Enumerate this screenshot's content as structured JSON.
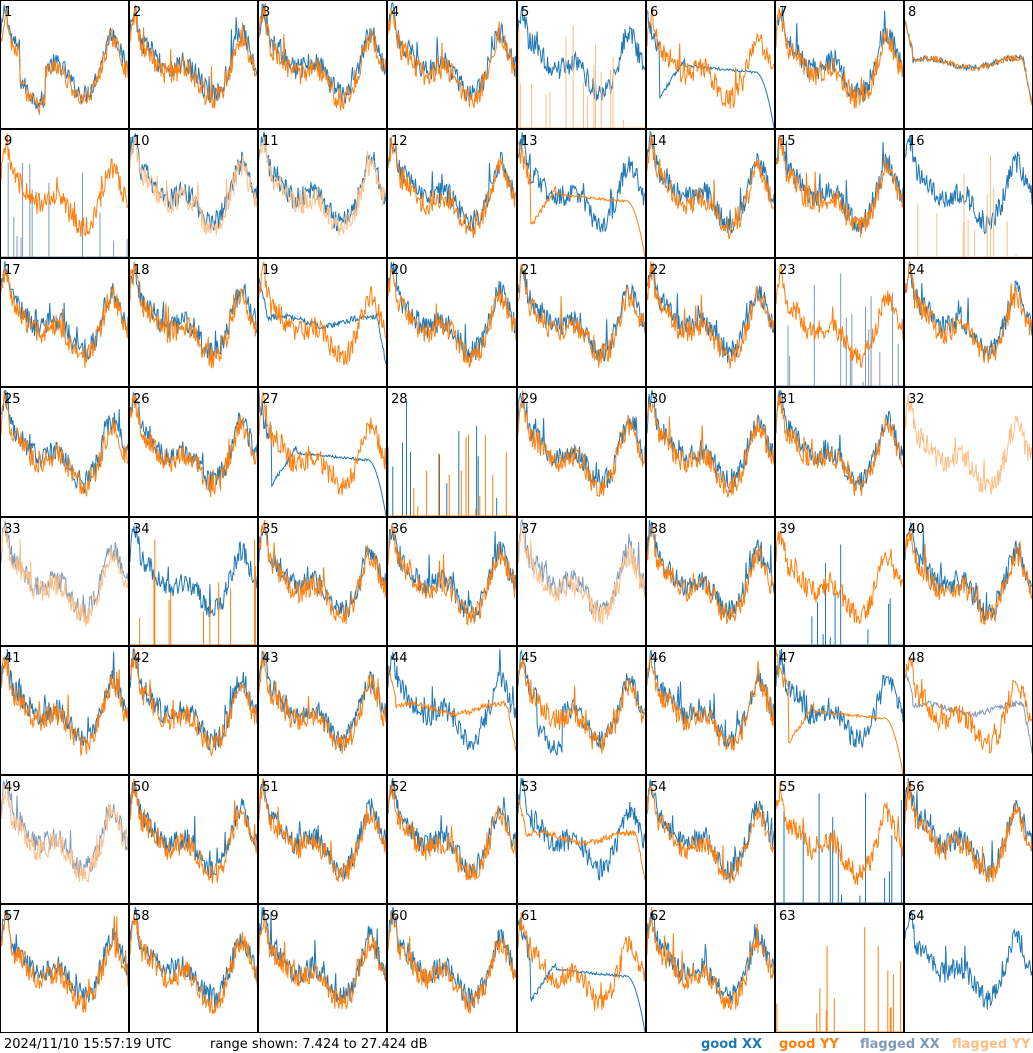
{
  "footer": {
    "timestamp": "2024/11/10 15:57:19 UTC",
    "range": "range shown: 7.424 to 27.424 dB"
  },
  "legend": [
    {
      "label": "good XX",
      "color": "#1f77b4"
    },
    {
      "label": "good YY",
      "color": "#ff7f0e"
    },
    {
      "label": "flagged XX",
      "color": "#7f9bb8"
    },
    {
      "label": "flagged YY",
      "color": "#ffbf87"
    }
  ],
  "colors": {
    "good_xx": "#1f77b4",
    "good_yy": "#ff7f0e",
    "flagged_xx": "#7f9bb8",
    "flagged_yy": "#ffbf87",
    "border": "#000000"
  },
  "chart_data": {
    "type": "line",
    "layout": "8x8 small multiples",
    "ylim_db": [
      7.424,
      27.424
    ],
    "series_kinds": [
      "XX",
      "YY"
    ],
    "panels": [
      {
        "id": "1",
        "xx": "good",
        "yy": "good",
        "xx_shape": "dip",
        "yy_shape": "dip"
      },
      {
        "id": "2",
        "xx": "good",
        "yy": "good",
        "xx_shape": "normal",
        "yy_shape": "normal"
      },
      {
        "id": "3",
        "xx": "good",
        "yy": "good",
        "xx_shape": "normal",
        "yy_shape": "normal"
      },
      {
        "id": "4",
        "xx": "good",
        "yy": "good",
        "xx_shape": "normal",
        "yy_shape": "normal"
      },
      {
        "id": "5",
        "xx": "good",
        "yy": "flagged",
        "xx_shape": "normal",
        "yy_shape": "spiky"
      },
      {
        "id": "6",
        "xx": "good",
        "yy": "good",
        "xx_shape": "decay",
        "yy_shape": "normal"
      },
      {
        "id": "7",
        "xx": "good",
        "yy": "good",
        "xx_shape": "normal",
        "yy_shape": "normal"
      },
      {
        "id": "8",
        "xx": "good",
        "yy": "good",
        "xx_shape": "flat",
        "yy_shape": "flat"
      },
      {
        "id": "9",
        "xx": "flagged",
        "yy": "good",
        "xx_shape": "spiky",
        "yy_shape": "normal"
      },
      {
        "id": "10",
        "xx": "good",
        "yy": "flagged",
        "xx_shape": "normal",
        "yy_shape": "normal"
      },
      {
        "id": "11",
        "xx": "good",
        "yy": "flagged",
        "xx_shape": "normal",
        "yy_shape": "normal"
      },
      {
        "id": "12",
        "xx": "good",
        "yy": "good",
        "xx_shape": "normal",
        "yy_shape": "normal"
      },
      {
        "id": "13",
        "xx": "good",
        "yy": "good",
        "xx_shape": "normal",
        "yy_shape": "decay"
      },
      {
        "id": "14",
        "xx": "good",
        "yy": "good",
        "xx_shape": "normal",
        "yy_shape": "normal"
      },
      {
        "id": "15",
        "xx": "good",
        "yy": "good",
        "xx_shape": "normal",
        "yy_shape": "normal"
      },
      {
        "id": "16",
        "xx": "good",
        "yy": "flagged",
        "xx_shape": "normal",
        "yy_shape": "spiky"
      },
      {
        "id": "17",
        "xx": "good",
        "yy": "good",
        "xx_shape": "normal",
        "yy_shape": "normal"
      },
      {
        "id": "18",
        "xx": "good",
        "yy": "good",
        "xx_shape": "normal",
        "yy_shape": "normal"
      },
      {
        "id": "19",
        "xx": "good",
        "yy": "good",
        "xx_shape": "flat",
        "yy_shape": "normal"
      },
      {
        "id": "20",
        "xx": "good",
        "yy": "good",
        "xx_shape": "normal",
        "yy_shape": "normal"
      },
      {
        "id": "21",
        "xx": "good",
        "yy": "good",
        "xx_shape": "normal",
        "yy_shape": "normal"
      },
      {
        "id": "22",
        "xx": "good",
        "yy": "good",
        "xx_shape": "normal",
        "yy_shape": "normal"
      },
      {
        "id": "23",
        "xx": "flagged",
        "yy": "good",
        "xx_shape": "spiky",
        "yy_shape": "normal"
      },
      {
        "id": "24",
        "xx": "good",
        "yy": "good",
        "xx_shape": "normal",
        "yy_shape": "normal"
      },
      {
        "id": "25",
        "xx": "good",
        "yy": "good",
        "xx_shape": "normal",
        "yy_shape": "normal"
      },
      {
        "id": "26",
        "xx": "good",
        "yy": "good",
        "xx_shape": "normal",
        "yy_shape": "normal"
      },
      {
        "id": "27",
        "xx": "good",
        "yy": "good",
        "xx_shape": "decay",
        "yy_shape": "normal"
      },
      {
        "id": "28",
        "xx": "good",
        "yy": "good",
        "xx_shape": "spiky",
        "yy_shape": "spiky"
      },
      {
        "id": "29",
        "xx": "good",
        "yy": "good",
        "xx_shape": "normal",
        "yy_shape": "normal"
      },
      {
        "id": "30",
        "xx": "good",
        "yy": "good",
        "xx_shape": "normal",
        "yy_shape": "normal"
      },
      {
        "id": "31",
        "xx": "good",
        "yy": "good",
        "xx_shape": "normal",
        "yy_shape": "normal"
      },
      {
        "id": "32",
        "xx": "flagged",
        "yy": "flagged",
        "xx_shape": "none",
        "yy_shape": "normal"
      },
      {
        "id": "33",
        "xx": "flagged",
        "yy": "flagged",
        "xx_shape": "normal",
        "yy_shape": "normal"
      },
      {
        "id": "34",
        "xx": "good",
        "yy": "good",
        "xx_shape": "normal",
        "yy_shape": "spiky"
      },
      {
        "id": "35",
        "xx": "good",
        "yy": "good",
        "xx_shape": "normal",
        "yy_shape": "normal"
      },
      {
        "id": "36",
        "xx": "good",
        "yy": "good",
        "xx_shape": "normal",
        "yy_shape": "normal"
      },
      {
        "id": "37",
        "xx": "flagged",
        "yy": "flagged",
        "xx_shape": "normal",
        "yy_shape": "normal"
      },
      {
        "id": "38",
        "xx": "good",
        "yy": "good",
        "xx_shape": "normal",
        "yy_shape": "normal"
      },
      {
        "id": "39",
        "xx": "good",
        "yy": "good",
        "xx_shape": "spiky",
        "yy_shape": "normal"
      },
      {
        "id": "40",
        "xx": "good",
        "yy": "good",
        "xx_shape": "normal",
        "yy_shape": "normal"
      },
      {
        "id": "41",
        "xx": "good",
        "yy": "good",
        "xx_shape": "normal",
        "yy_shape": "normal"
      },
      {
        "id": "42",
        "xx": "good",
        "yy": "good",
        "xx_shape": "normal",
        "yy_shape": "normal"
      },
      {
        "id": "43",
        "xx": "good",
        "yy": "good",
        "xx_shape": "normal",
        "yy_shape": "normal"
      },
      {
        "id": "44",
        "xx": "good",
        "yy": "good",
        "xx_shape": "normal",
        "yy_shape": "flat"
      },
      {
        "id": "45",
        "xx": "good",
        "yy": "good",
        "xx_shape": "dip",
        "yy_shape": "normal"
      },
      {
        "id": "46",
        "xx": "good",
        "yy": "good",
        "xx_shape": "normal",
        "yy_shape": "normal"
      },
      {
        "id": "47",
        "xx": "good",
        "yy": "good",
        "xx_shape": "normal",
        "yy_shape": "decay"
      },
      {
        "id": "48",
        "xx": "flagged",
        "yy": "good",
        "xx_shape": "flat",
        "yy_shape": "normal"
      },
      {
        "id": "49",
        "xx": "flagged",
        "yy": "flagged",
        "xx_shape": "normal",
        "yy_shape": "normal"
      },
      {
        "id": "50",
        "xx": "good",
        "yy": "good",
        "xx_shape": "normal",
        "yy_shape": "normal"
      },
      {
        "id": "51",
        "xx": "good",
        "yy": "good",
        "xx_shape": "normal",
        "yy_shape": "normal"
      },
      {
        "id": "52",
        "xx": "good",
        "yy": "good",
        "xx_shape": "normal",
        "yy_shape": "normal"
      },
      {
        "id": "53",
        "xx": "good",
        "yy": "good",
        "xx_shape": "normal",
        "yy_shape": "flat"
      },
      {
        "id": "54",
        "xx": "good",
        "yy": "good",
        "xx_shape": "normal",
        "yy_shape": "normal"
      },
      {
        "id": "55",
        "xx": "good",
        "yy": "good",
        "xx_shape": "spiky",
        "yy_shape": "normal"
      },
      {
        "id": "56",
        "xx": "good",
        "yy": "good",
        "xx_shape": "normal",
        "yy_shape": "normal"
      },
      {
        "id": "57",
        "xx": "good",
        "yy": "good",
        "xx_shape": "normal",
        "yy_shape": "normal"
      },
      {
        "id": "58",
        "xx": "good",
        "yy": "good",
        "xx_shape": "normal",
        "yy_shape": "normal"
      },
      {
        "id": "59",
        "xx": "good",
        "yy": "good",
        "xx_shape": "normal",
        "yy_shape": "normal"
      },
      {
        "id": "60",
        "xx": "good",
        "yy": "good",
        "xx_shape": "normal",
        "yy_shape": "normal"
      },
      {
        "id": "61",
        "xx": "good",
        "yy": "good",
        "xx_shape": "decay",
        "yy_shape": "normal"
      },
      {
        "id": "62",
        "xx": "good",
        "yy": "good",
        "xx_shape": "normal",
        "yy_shape": "normal"
      },
      {
        "id": "63",
        "xx": "good",
        "yy": "good",
        "xx_shape": "none",
        "yy_shape": "spiky"
      },
      {
        "id": "64",
        "xx": "good",
        "yy": "good",
        "xx_shape": "normal",
        "yy_shape": "none"
      }
    ]
  }
}
